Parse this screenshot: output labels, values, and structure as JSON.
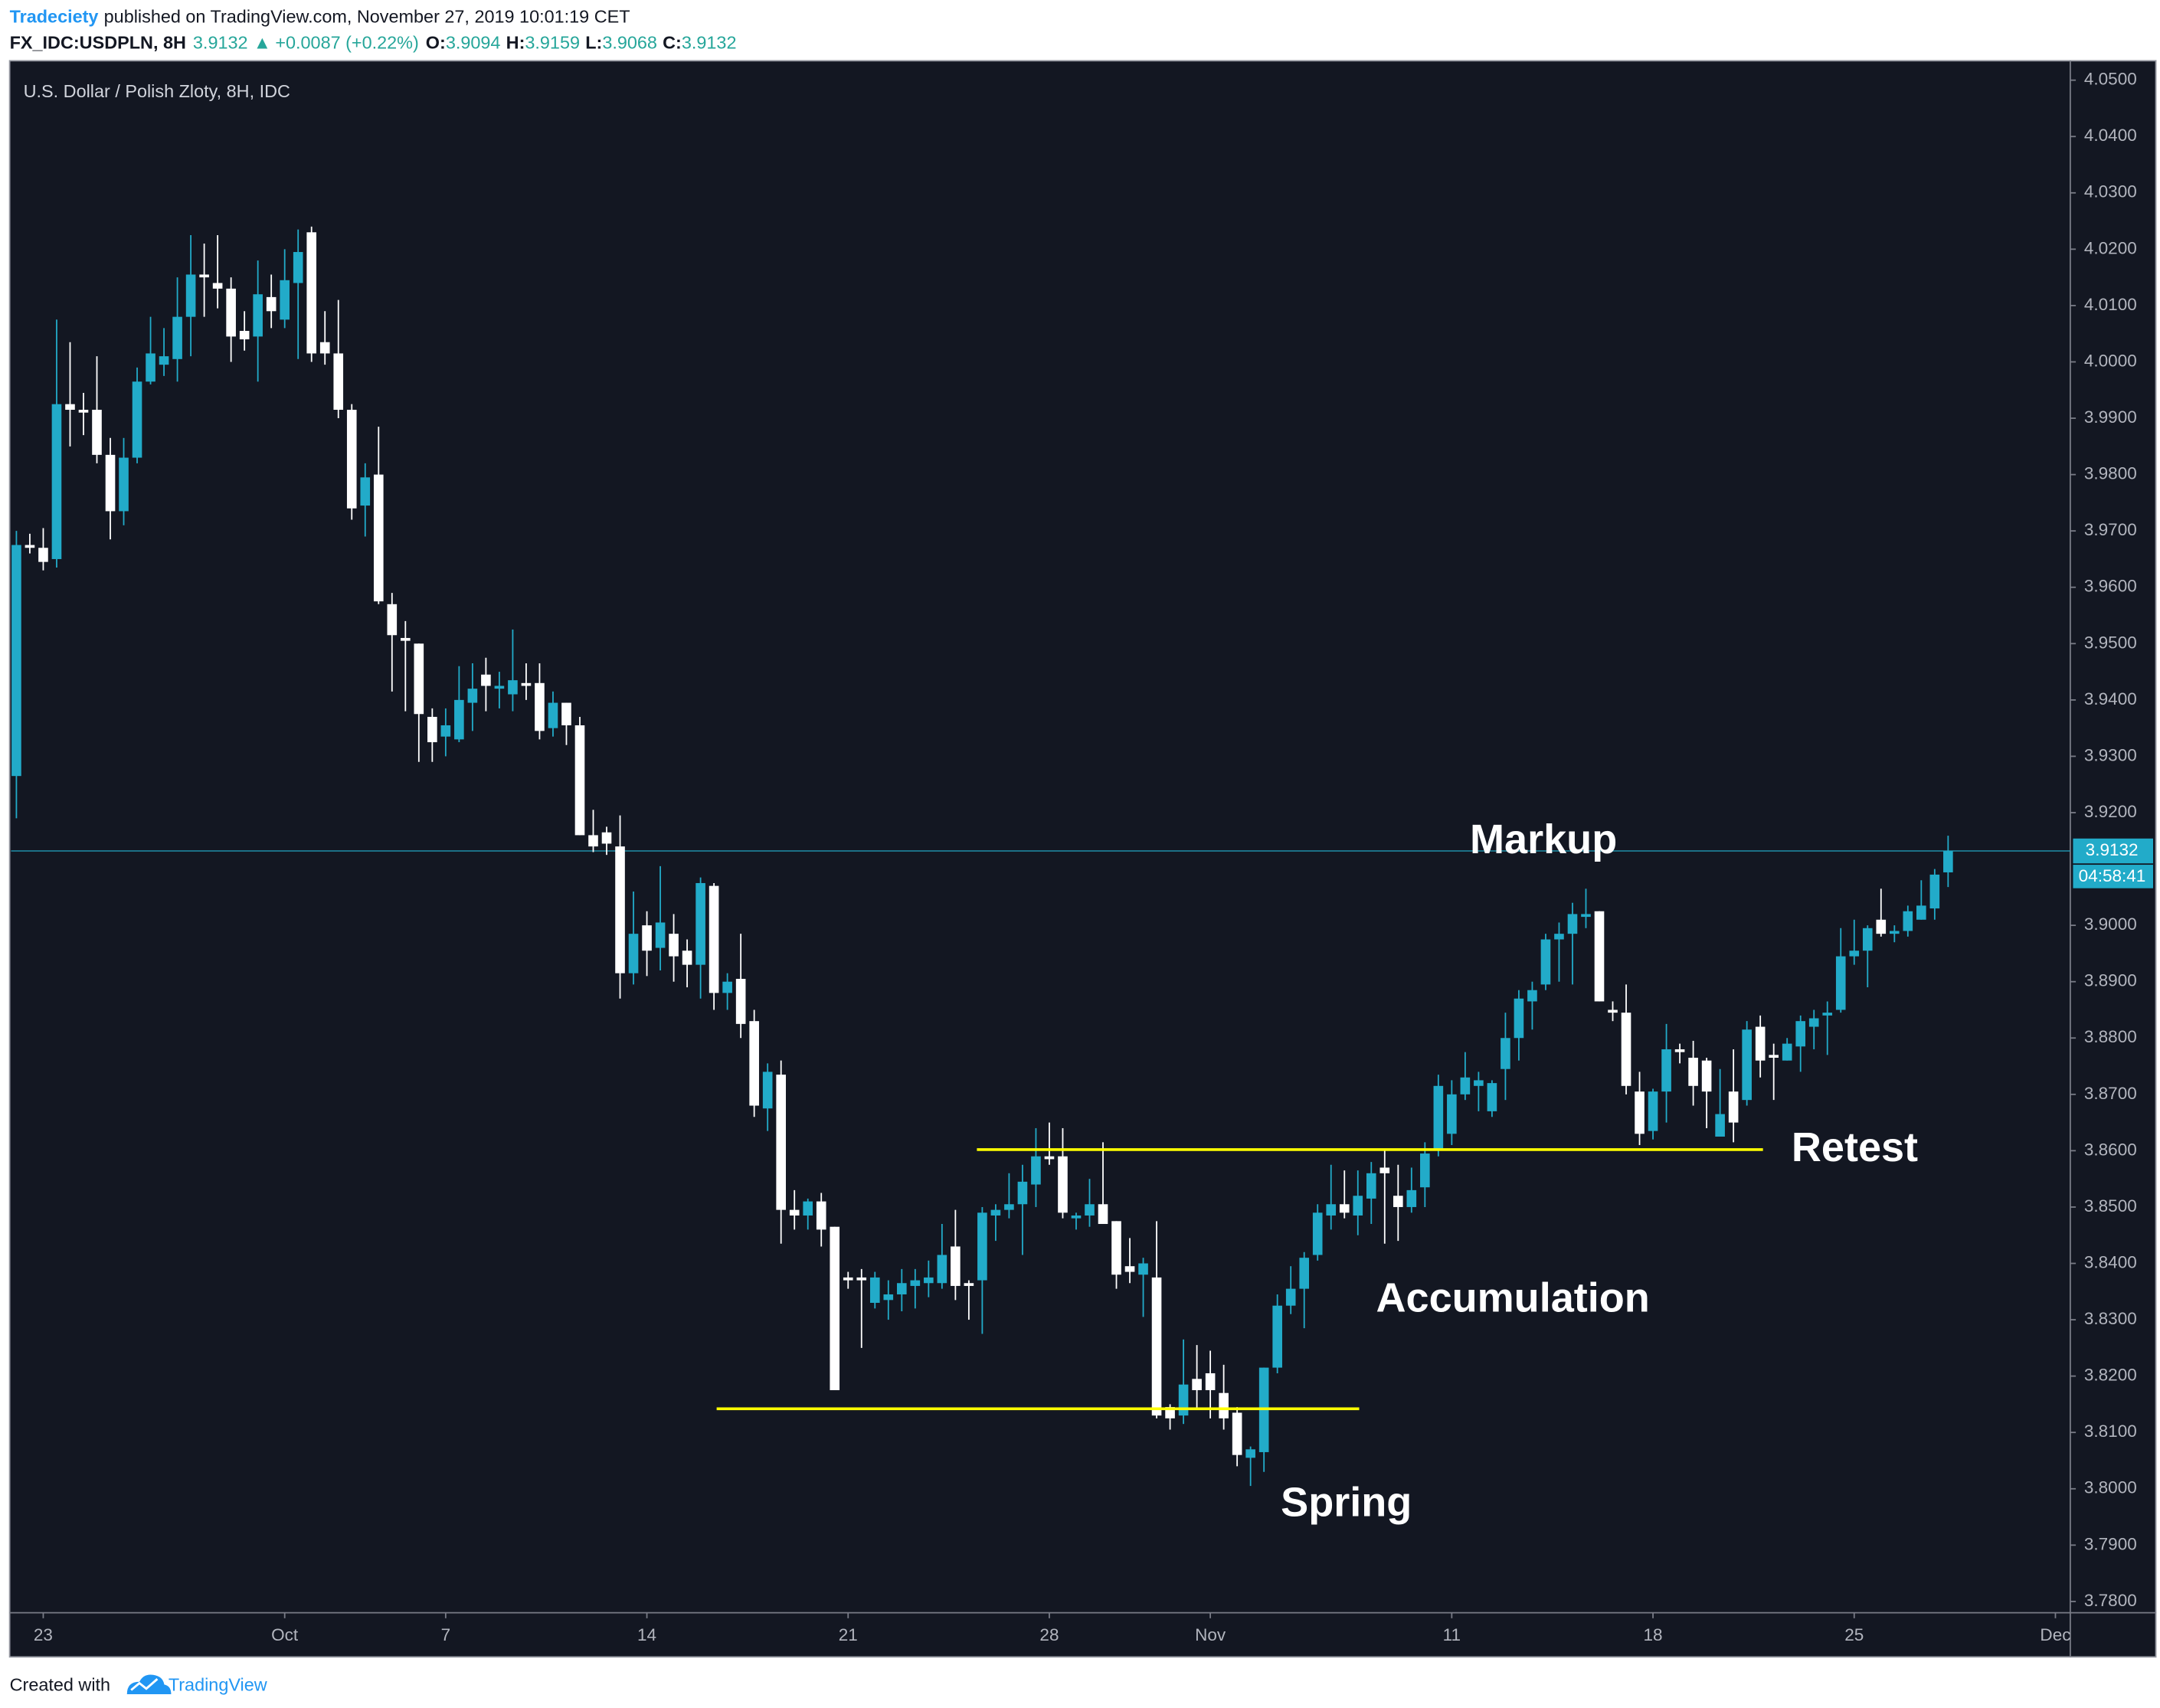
{
  "header": {
    "publisher": "Tradeciety",
    "published": "published on TradingView.com, November 27, 2019 10:01:19 CET",
    "symbol": "FX_IDC:USDPLN, 8H",
    "change": "+0.0087 (+0.22%)",
    "o_label": "O:",
    "h_label": "H:",
    "l_label": "L:",
    "c_label": "C:"
  },
  "footer": {
    "created": "Created with",
    "brand": "TradingView"
  },
  "chart_data": {
    "type": "candlestick",
    "title": "U.S. Dollar / Polish Zloty, 8H, IDC",
    "up_color": "#22abc9",
    "down_color": "#ffffff",
    "background": "#131722",
    "grid": false,
    "ylim": [
      3.778,
      4.0532
    ],
    "yticks": [
      {
        "value": 3.78,
        "label": "3.7800"
      },
      {
        "value": 3.79,
        "label": "3.7900"
      },
      {
        "value": 3.8,
        "label": "3.8000"
      },
      {
        "value": 3.81,
        "label": "3.8100"
      },
      {
        "value": 3.82,
        "label": "3.8200"
      },
      {
        "value": 3.83,
        "label": "3.8300"
      },
      {
        "value": 3.84,
        "label": "3.8400"
      },
      {
        "value": 3.85,
        "label": "3.8500"
      },
      {
        "value": 3.86,
        "label": "3.8600"
      },
      {
        "value": 3.87,
        "label": "3.8700"
      },
      {
        "value": 3.88,
        "label": "3.8800"
      },
      {
        "value": 3.89,
        "label": "3.8900"
      },
      {
        "value": 3.9,
        "label": "3.9000"
      },
      {
        "value": 3.92,
        "label": "3.9200"
      },
      {
        "value": 3.93,
        "label": "3.9300"
      },
      {
        "value": 3.94,
        "label": "3.9400"
      },
      {
        "value": 3.95,
        "label": "3.9500"
      },
      {
        "value": 3.96,
        "label": "3.9600"
      },
      {
        "value": 3.97,
        "label": "3.9700"
      },
      {
        "value": 3.98,
        "label": "3.9800"
      },
      {
        "value": 3.99,
        "label": "3.9900"
      },
      {
        "value": 4.0,
        "label": "4.0000"
      },
      {
        "value": 4.01,
        "label": "4.0100"
      },
      {
        "value": 4.02,
        "label": "4.0200"
      },
      {
        "value": 4.03,
        "label": "4.0300"
      },
      {
        "value": 4.04,
        "label": "4.0400"
      },
      {
        "value": 4.05,
        "label": "4.0500"
      }
    ],
    "xlim": [
      -0.4,
      152.8
    ],
    "xticks": [
      {
        "value": 2,
        "label": "23"
      },
      {
        "value": 20,
        "label": "Oct"
      },
      {
        "value": 32,
        "label": "7"
      },
      {
        "value": 47,
        "label": "14"
      },
      {
        "value": 62,
        "label": "21"
      },
      {
        "value": 77,
        "label": "28"
      },
      {
        "value": 89,
        "label": "Nov"
      },
      {
        "value": 107,
        "label": "11"
      },
      {
        "value": 122,
        "label": "18"
      },
      {
        "value": 137,
        "label": "25"
      },
      {
        "value": 152,
        "label": "Dec"
      }
    ],
    "open": [
      3.9265,
      3.9675,
      3.967,
      3.965,
      3.9925,
      3.9915,
      3.9915,
      3.9835,
      3.9735,
      3.983,
      3.9965,
      3.9995,
      4.0005,
      4.008,
      4.0155,
      4.014,
      4.013,
      4.0055,
      4.0045,
      4.0115,
      4.0075,
      4.014,
      4.023,
      4.0035,
      4.0015,
      3.9915,
      3.9745,
      3.98,
      3.957,
      3.951,
      3.95,
      3.937,
      3.9335,
      3.933,
      3.9395,
      3.9445,
      3.942,
      3.941,
      3.943,
      3.943,
      3.935,
      3.9395,
      3.9355,
      3.916,
      3.9165,
      3.914,
      3.8915,
      3.9,
      3.896,
      3.8985,
      3.8955,
      3.893,
      3.907,
      3.888,
      3.8905,
      3.883,
      3.8675,
      3.8735,
      3.8495,
      3.8485,
      3.851,
      3.8465,
      3.8375,
      3.8375,
      3.833,
      3.8335,
      3.8345,
      3.836,
      3.8365,
      3.8365,
      3.843,
      3.8365,
      3.837,
      3.8485,
      3.8495,
      3.8505,
      3.854,
      3.859,
      3.859,
      3.848,
      3.8485,
      3.8505,
      3.8475,
      3.8395,
      3.838,
      3.8375,
      3.8145,
      3.813,
      3.8195,
      3.8205,
      3.817,
      3.8135,
      3.8055,
      3.8065,
      3.8215,
      3.8325,
      3.8355,
      3.8415,
      3.8485,
      3.8505,
      3.8485,
      3.8515,
      3.857,
      3.852,
      3.85,
      3.8535,
      3.86,
      3.863,
      3.87,
      3.8715,
      3.867,
      3.8745,
      3.88,
      3.8865,
      3.8895,
      3.8975,
      3.8985,
      3.9015,
      3.9025,
      3.885,
      3.8845,
      3.8705,
      3.8635,
      3.8705,
      3.878,
      3.8765,
      3.876,
      3.8625,
      3.8705,
      3.869,
      3.882,
      3.877,
      3.876,
      3.8785,
      3.882,
      3.884,
      3.885,
      3.8945,
      3.8955,
      3.901,
      3.8985,
      3.899,
      3.901,
      3.903,
      3.9094
    ],
    "high": [
      3.97,
      3.9695,
      3.9705,
      4.0075,
      4.0035,
      3.9945,
      4.001,
      3.9865,
      3.9865,
      3.999,
      4.008,
      4.006,
      4.015,
      4.0225,
      4.021,
      4.0225,
      4.015,
      4.009,
      4.018,
      4.0155,
      4.02,
      4.0235,
      4.024,
      4.009,
      4.011,
      3.9925,
      3.982,
      3.9885,
      3.959,
      3.954,
      3.95,
      3.9385,
      3.9385,
      3.946,
      3.9465,
      3.9475,
      3.945,
      3.9525,
      3.9465,
      3.9465,
      3.9415,
      3.9395,
      3.937,
      3.9205,
      3.9175,
      3.9195,
      3.906,
      3.9025,
      3.9105,
      3.902,
      3.8975,
      3.9085,
      3.9075,
      3.8915,
      3.8985,
      3.885,
      3.8755,
      3.876,
      3.853,
      3.8515,
      3.8525,
      3.8465,
      3.8385,
      3.839,
      3.8385,
      3.837,
      3.839,
      3.839,
      3.8405,
      3.847,
      3.8495,
      3.837,
      3.85,
      3.8505,
      3.856,
      3.8575,
      3.864,
      3.865,
      3.864,
      3.849,
      3.855,
      3.8615,
      3.8475,
      3.8445,
      3.841,
      3.8475,
      3.815,
      3.8265,
      3.8255,
      3.8245,
      3.822,
      3.8145,
      3.8075,
      3.8215,
      3.8345,
      3.8395,
      3.842,
      3.8505,
      3.8575,
      3.8565,
      3.8565,
      3.858,
      3.86,
      3.8575,
      3.857,
      3.8615,
      3.8735,
      3.8725,
      3.8775,
      3.874,
      3.8725,
      3.8845,
      3.8885,
      3.89,
      3.8985,
      3.9005,
      3.904,
      3.9065,
      3.9025,
      3.8865,
      3.8895,
      3.874,
      3.871,
      3.8825,
      3.879,
      3.8795,
      3.8765,
      3.8745,
      3.878,
      3.883,
      3.884,
      3.879,
      3.88,
      3.884,
      3.885,
      3.8865,
      3.8995,
      3.901,
      3.9,
      3.9065,
      3.9,
      3.9035,
      3.908,
      3.91,
      3.9159
    ],
    "low": [
      3.919,
      3.966,
      3.963,
      3.9635,
      3.985,
      3.987,
      3.982,
      3.9685,
      3.971,
      3.982,
      3.996,
      3.9975,
      3.9965,
      4.001,
      4.008,
      4.0095,
      4.0,
      4.002,
      3.9965,
      4.006,
      4.006,
      4.0005,
      4.0,
      3.9995,
      3.99,
      3.972,
      3.969,
      3.957,
      3.9415,
      3.938,
      3.929,
      3.929,
      3.93,
      3.9325,
      3.9345,
      3.938,
      3.9385,
      3.938,
      3.94,
      3.933,
      3.9335,
      3.932,
      3.916,
      3.913,
      3.9125,
      3.887,
      3.8895,
      3.891,
      3.892,
      3.89,
      3.889,
      3.887,
      3.885,
      3.885,
      3.88,
      3.866,
      3.8635,
      3.8435,
      3.846,
      3.846,
      3.843,
      3.8175,
      3.8355,
      3.825,
      3.832,
      3.83,
      3.8315,
      3.832,
      3.834,
      3.8355,
      3.8335,
      3.83,
      3.8275,
      3.844,
      3.848,
      3.8415,
      3.85,
      3.8575,
      3.848,
      3.846,
      3.8465,
      3.847,
      3.8355,
      3.8365,
      3.8305,
      3.8125,
      3.8105,
      3.8115,
      3.814,
      3.8125,
      3.8105,
      3.804,
      3.8005,
      3.803,
      3.8205,
      3.831,
      3.8285,
      3.8405,
      3.846,
      3.848,
      3.845,
      3.847,
      3.8435,
      3.844,
      3.849,
      3.85,
      3.859,
      3.861,
      3.869,
      3.867,
      3.866,
      3.869,
      3.876,
      3.8815,
      3.8885,
      3.89,
      3.8895,
      3.8995,
      3.8865,
      3.883,
      3.87,
      3.861,
      3.862,
      3.865,
      3.8755,
      3.868,
      3.864,
      3.8625,
      3.8615,
      3.868,
      3.873,
      3.869,
      3.876,
      3.874,
      3.878,
      3.877,
      3.8845,
      3.893,
      3.889,
      3.898,
      3.897,
      3.898,
      3.901,
      3.901,
      3.9068
    ],
    "close": [
      3.9675,
      3.967,
      3.9645,
      3.9925,
      3.9915,
      3.991,
      3.9835,
      3.9735,
      3.983,
      3.9965,
      4.0015,
      4.001,
      4.008,
      4.0155,
      4.015,
      4.013,
      4.0045,
      4.004,
      4.012,
      4.009,
      4.0145,
      4.0195,
      4.0015,
      4.0015,
      3.9915,
      3.974,
      3.9795,
      3.9575,
      3.9515,
      3.9505,
      3.9375,
      3.9325,
      3.9355,
      3.94,
      3.942,
      3.9425,
      3.9425,
      3.9435,
      3.9425,
      3.9345,
      3.9395,
      3.9355,
      3.916,
      3.914,
      3.9145,
      3.8915,
      3.8985,
      3.8955,
      3.9005,
      3.8945,
      3.893,
      3.9075,
      3.888,
      3.89,
      3.8825,
      3.868,
      3.874,
      3.8495,
      3.8485,
      3.851,
      3.846,
      3.8175,
      3.837,
      3.837,
      3.8375,
      3.8345,
      3.8365,
      3.837,
      3.8375,
      3.8415,
      3.836,
      3.836,
      3.849,
      3.8495,
      3.8505,
      3.8545,
      3.859,
      3.8585,
      3.849,
      3.8485,
      3.8505,
      3.847,
      3.838,
      3.8385,
      3.84,
      3.813,
      3.8125,
      3.8185,
      3.8175,
      3.8175,
      3.8125,
      3.806,
      3.807,
      3.8215,
      3.8325,
      3.8355,
      3.841,
      3.849,
      3.8505,
      3.849,
      3.852,
      3.856,
      3.856,
      3.85,
      3.853,
      3.8595,
      3.8715,
      3.87,
      3.873,
      3.8725,
      3.872,
      3.88,
      3.887,
      3.8885,
      3.8975,
      3.8985,
      3.902,
      3.902,
      3.8865,
      3.8845,
      3.8715,
      3.863,
      3.8705,
      3.878,
      3.8775,
      3.8715,
      3.8705,
      3.8665,
      3.865,
      3.8815,
      3.876,
      3.8765,
      3.879,
      3.883,
      3.8835,
      3.8845,
      3.8945,
      3.8955,
      3.8995,
      3.8985,
      3.899,
      3.9025,
      3.9035,
      3.909,
      3.9132
    ],
    "countdown": "04:58:41",
    "levels": [
      {
        "y": 3.8602,
        "x": [
          71.6,
          130.2
        ],
        "color": "#ffff00"
      },
      {
        "y": 3.8142,
        "x": [
          52.2,
          100.1
        ],
        "color": "#ffff00"
      }
    ],
    "annotations": [
      "Markup",
      "Accumulation",
      "Spring",
      "Retest"
    ]
  }
}
